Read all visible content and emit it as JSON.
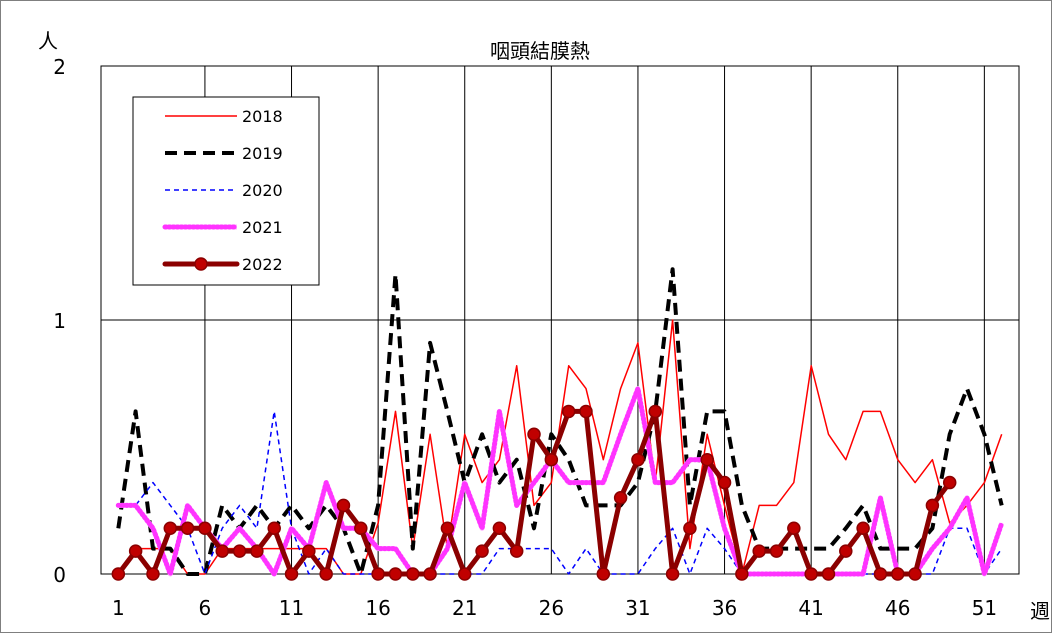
{
  "chart_data": {
    "type": "line",
    "title": "咽頭結膜熱",
    "ylabel": "人",
    "xlabel": "週",
    "ylim": [
      0,
      2
    ],
    "xlim": [
      0,
      53
    ],
    "yticks": [
      0,
      1,
      2
    ],
    "xticks": [
      1,
      6,
      11,
      16,
      21,
      26,
      31,
      36,
      41,
      46,
      51
    ],
    "grid": true,
    "legend_position": "top-left",
    "series": [
      {
        "name": "2018",
        "color": "#ff0000",
        "style": "thin-solid",
        "values": [
          0,
          0.1,
          0.1,
          0.1,
          0,
          0,
          0.1,
          0.1,
          0.1,
          0.1,
          0.1,
          0.1,
          0.1,
          0,
          0,
          0.2,
          0.64,
          0.1,
          0.55,
          0.1,
          0.55,
          0.36,
          0.45,
          0.82,
          0.27,
          0.36,
          0.82,
          0.73,
          0.45,
          0.73,
          0.91,
          0.36,
          1.0,
          0.1,
          0.55,
          0.27,
          0,
          0.27,
          0.27,
          0.36,
          0.82,
          0.55,
          0.45,
          0.64,
          0.64,
          0.45,
          0.36,
          0.45,
          0.2,
          0.27,
          0.36,
          0.55
        ]
      },
      {
        "name": "2019",
        "color": "#000000",
        "style": "thick-dashed",
        "values": [
          0.18,
          0.64,
          0.1,
          0.1,
          0,
          0,
          0.27,
          0.18,
          0.27,
          0.18,
          0.27,
          0.18,
          0.27,
          0.18,
          0,
          0.27,
          1.18,
          0.1,
          0.91,
          0.64,
          0.36,
          0.55,
          0.36,
          0.45,
          0.18,
          0.55,
          0.45,
          0.27,
          0.27,
          0.27,
          0.36,
          0.64,
          1.2,
          0.27,
          0.64,
          0.64,
          0.27,
          0.1,
          0.1,
          0.1,
          0.1,
          0.1,
          0.18,
          0.27,
          0.1,
          0.1,
          0.1,
          0.18,
          0.55,
          0.73,
          0.55,
          0.27
        ]
      },
      {
        "name": "2020",
        "color": "#0000ff",
        "style": "thin-dashed",
        "values": [
          0.27,
          0.27,
          0.36,
          0.27,
          0.18,
          0,
          0.18,
          0.27,
          0.18,
          0.64,
          0.18,
          0,
          0.1,
          0,
          0,
          0,
          0,
          0,
          0,
          0,
          0,
          0,
          0.1,
          0.1,
          0.1,
          0.1,
          0,
          0.1,
          0,
          0,
          0,
          0.1,
          0.18,
          0,
          0.18,
          0.1,
          0,
          0,
          0,
          0,
          0,
          0,
          0,
          0,
          0,
          0,
          0,
          0,
          0.18,
          0.18,
          0,
          0.1
        ]
      },
      {
        "name": "2021",
        "color": "#ff33ff",
        "style": "thick-dotted",
        "values": [
          0.27,
          0.27,
          0.18,
          0,
          0.27,
          0.18,
          0.1,
          0.18,
          0.1,
          0,
          0.18,
          0.1,
          0.36,
          0.18,
          0.18,
          0.1,
          0.1,
          0,
          0,
          0.1,
          0.36,
          0.18,
          0.64,
          0.27,
          0.36,
          0.45,
          0.36,
          0.36,
          0.36,
          0.55,
          0.73,
          0.36,
          0.36,
          0.45,
          0.45,
          0.18,
          0,
          0,
          0,
          0,
          0,
          0,
          0,
          0,
          0.3,
          0,
          0,
          0.1,
          0.18,
          0.3,
          0,
          0.2
        ]
      },
      {
        "name": "2022",
        "color": "#8b0000",
        "style": "thick-solid-markers",
        "values": [
          0,
          0.09,
          0,
          0.18,
          0.18,
          0.18,
          0.09,
          0.09,
          0.09,
          0.18,
          0,
          0.09,
          0,
          0.27,
          0.18,
          0,
          0,
          0,
          0,
          0.18,
          0,
          0.09,
          0.18,
          0.09,
          0.55,
          0.45,
          0.64,
          0.64,
          0,
          0.3,
          0.45,
          0.64,
          0,
          0.18,
          0.45,
          0.36,
          0,
          0.09,
          0.09,
          0.18,
          0,
          0,
          0.09,
          0.18,
          0,
          0,
          0,
          0.27,
          0.36
        ]
      }
    ]
  }
}
